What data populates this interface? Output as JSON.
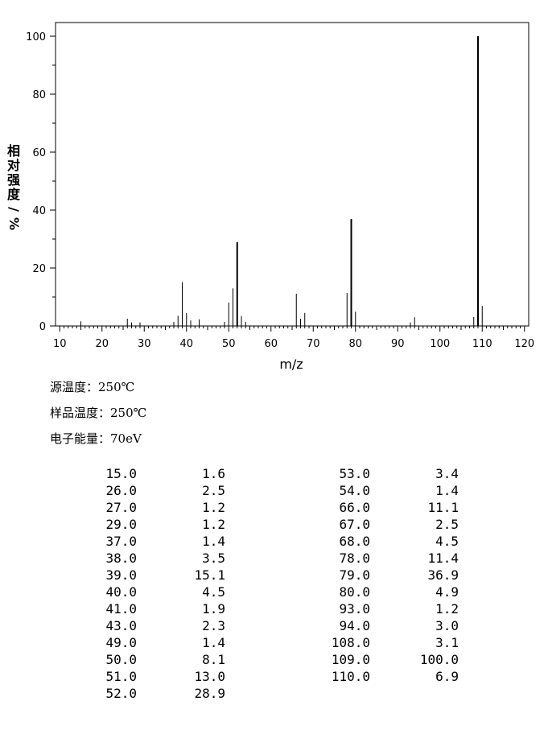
{
  "chart_data": {
    "type": "bar",
    "xlabel": "m/z",
    "ylabel": "相对强度/%",
    "xlim": [
      9,
      121
    ],
    "ylim": [
      0,
      100
    ],
    "x_ticks": [
      "10",
      "20",
      "30",
      "40",
      "50",
      "60",
      "70",
      "80",
      "90",
      "100",
      "110",
      "120"
    ],
    "y_ticks": [
      "0",
      "20",
      "40",
      "60",
      "80",
      "100"
    ],
    "peaks": [
      {
        "mz": 15,
        "intensity": 1.6
      },
      {
        "mz": 26,
        "intensity": 2.5
      },
      {
        "mz": 27,
        "intensity": 1.2
      },
      {
        "mz": 29,
        "intensity": 1.2
      },
      {
        "mz": 37,
        "intensity": 1.4
      },
      {
        "mz": 38,
        "intensity": 3.5
      },
      {
        "mz": 39,
        "intensity": 15.1
      },
      {
        "mz": 40,
        "intensity": 4.5
      },
      {
        "mz": 41,
        "intensity": 1.9
      },
      {
        "mz": 43,
        "intensity": 2.3
      },
      {
        "mz": 49,
        "intensity": 1.4
      },
      {
        "mz": 50,
        "intensity": 8.1
      },
      {
        "mz": 51,
        "intensity": 13.0
      },
      {
        "mz": 52,
        "intensity": 28.9
      },
      {
        "mz": 53,
        "intensity": 3.4
      },
      {
        "mz": 54,
        "intensity": 1.4
      },
      {
        "mz": 66,
        "intensity": 11.1
      },
      {
        "mz": 67,
        "intensity": 2.5
      },
      {
        "mz": 68,
        "intensity": 4.5
      },
      {
        "mz": 78,
        "intensity": 11.4
      },
      {
        "mz": 79,
        "intensity": 36.9
      },
      {
        "mz": 80,
        "intensity": 4.9
      },
      {
        "mz": 93,
        "intensity": 1.2
      },
      {
        "mz": 94,
        "intensity": 3.0
      },
      {
        "mz": 108,
        "intensity": 3.1
      },
      {
        "mz": 109,
        "intensity": 100.0
      },
      {
        "mz": 110,
        "intensity": 6.9
      }
    ]
  },
  "conditions": {
    "source_temp": "源温度：250℃",
    "sample_temp": "样品温度：250℃",
    "electron_energy": "电子能量：70eV"
  },
  "table": {
    "left": [
      [
        "15.0",
        "1.6"
      ],
      [
        "26.0",
        "2.5"
      ],
      [
        "27.0",
        "1.2"
      ],
      [
        "29.0",
        "1.2"
      ],
      [
        "37.0",
        "1.4"
      ],
      [
        "38.0",
        "3.5"
      ],
      [
        "39.0",
        "15.1"
      ],
      [
        "40.0",
        "4.5"
      ],
      [
        "41.0",
        "1.9"
      ],
      [
        "43.0",
        "2.3"
      ],
      [
        "49.0",
        "1.4"
      ],
      [
        "50.0",
        "8.1"
      ],
      [
        "51.0",
        "13.0"
      ],
      [
        "52.0",
        "28.9"
      ]
    ],
    "right": [
      [
        "53.0",
        "3.4"
      ],
      [
        "54.0",
        "1.4"
      ],
      [
        "66.0",
        "11.1"
      ],
      [
        "67.0",
        "2.5"
      ],
      [
        "68.0",
        "4.5"
      ],
      [
        "78.0",
        "11.4"
      ],
      [
        "79.0",
        "36.9"
      ],
      [
        "80.0",
        "4.9"
      ],
      [
        "93.0",
        "1.2"
      ],
      [
        "94.0",
        "3.0"
      ],
      [
        "108.0",
        "3.1"
      ],
      [
        "109.0",
        "100.0"
      ],
      [
        "110.0",
        "6.9"
      ]
    ]
  }
}
